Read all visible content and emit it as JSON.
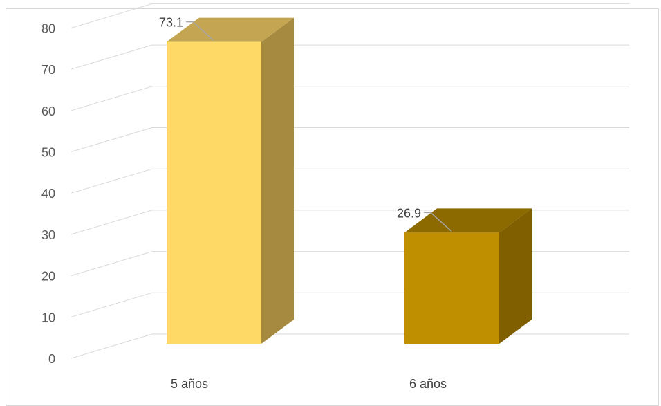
{
  "chart_data": {
    "type": "bar",
    "style": "3d-column",
    "categories": [
      "5 años",
      "6 años"
    ],
    "values": [
      73.1,
      26.9
    ],
    "data_labels": [
      "73.1",
      "26.9"
    ],
    "y_ticks": [
      "0",
      "10",
      "20",
      "30",
      "40",
      "50",
      "60",
      "70",
      "80"
    ],
    "ylim": [
      0,
      80
    ],
    "grid": true,
    "legend": "none",
    "colors": {
      "bars": [
        {
          "front": "#FFD966",
          "side": "#A58A40",
          "top": "#C4A652"
        },
        {
          "front": "#BF8F00",
          "side": "#7F5F00",
          "top": "#8C6A00"
        }
      ],
      "grid": "#d9d9d9",
      "leader": "#a6a6a6"
    }
  }
}
